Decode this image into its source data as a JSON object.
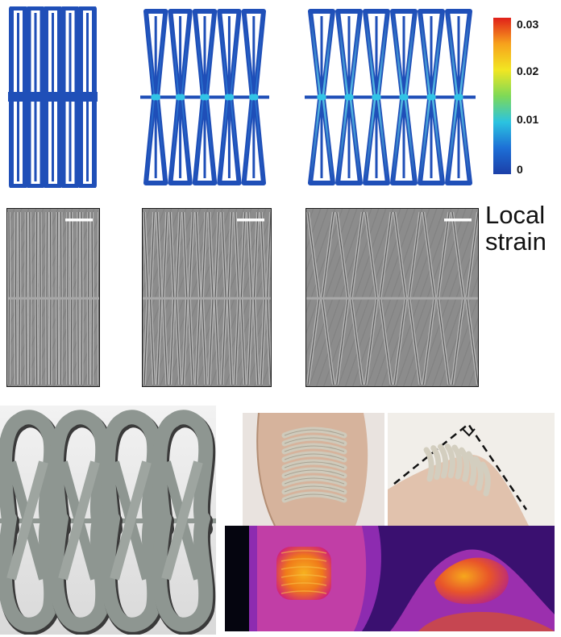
{
  "colorbar": {
    "ticks": [
      "0.03",
      "0.02",
      "0.01",
      "0"
    ],
    "colors": [
      "#e0201a",
      "#f7a21c",
      "#f2e622",
      "#7ed957",
      "#2bc3e0",
      "#1d6fd6",
      "#1b3fa8"
    ]
  },
  "side_label": {
    "line1": "Local",
    "line2": "strain"
  },
  "colors": {
    "fem_blue": "#1f4fb8",
    "fem_light": "#32c4e6",
    "sem_bg": "#8c8c8c",
    "serpentine_gray": "#8e9691",
    "thermal_bg": "#3a1070",
    "thermal_hot": "#f5a316"
  }
}
